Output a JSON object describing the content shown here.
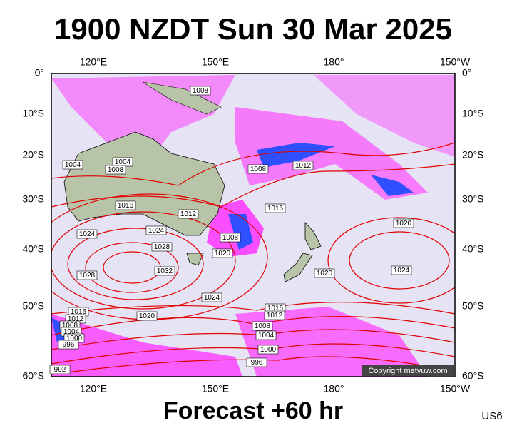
{
  "header": {
    "title": "1900 NZDT Sun 30 Mar 2025"
  },
  "footer": {
    "forecast": "Forecast +60 hr",
    "code": "US6"
  },
  "map": {
    "lon_labels": [
      "120°E",
      "150°E",
      "180°",
      "150°W"
    ],
    "lat_labels": [
      "0°",
      "10°S",
      "20°S",
      "30°S",
      "40°S",
      "50°S",
      "60°S"
    ],
    "isobar_labels": [
      "1008",
      "1004",
      "1004",
      "1008",
      "1016",
      "1012",
      "1024",
      "1024",
      "1028",
      "1008",
      "1020",
      "1032",
      "1028",
      "1024",
      "1020",
      "1016",
      "1012",
      "1008",
      "1004",
      "1000",
      "996",
      "992",
      "1008",
      "1012",
      "1016",
      "1020",
      "1024",
      "1020",
      "1016",
      "1012",
      "1008",
      "1004",
      "1000",
      "996"
    ],
    "copyright": "Copyright metvuw.com"
  }
}
